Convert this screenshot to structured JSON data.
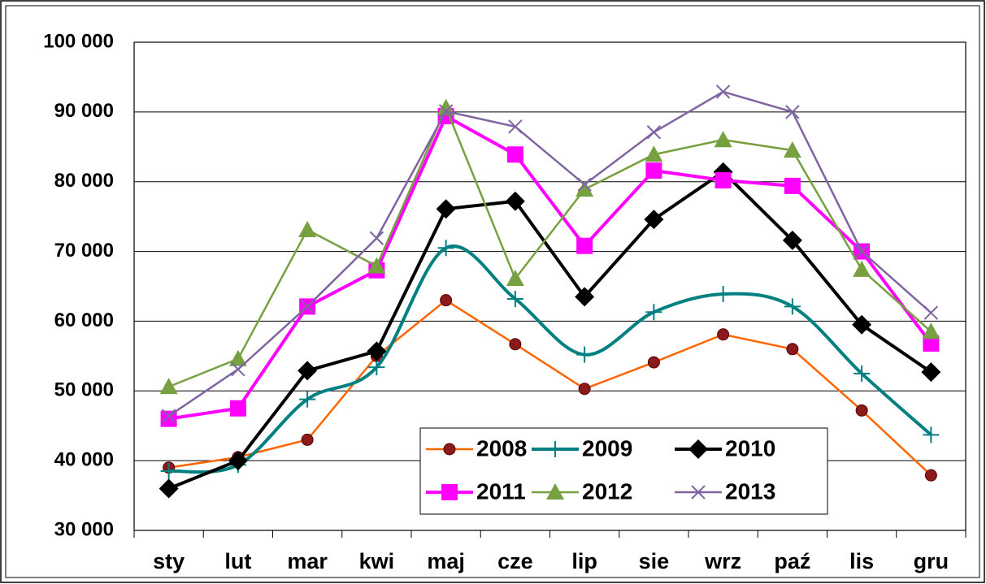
{
  "chart_data": {
    "type": "line",
    "categories": [
      "sty",
      "lut",
      "mar",
      "kwi",
      "maj",
      "cze",
      "lip",
      "sie",
      "wrz",
      "paź",
      "lis",
      "gru"
    ],
    "series": [
      {
        "name": "2008",
        "color": "#ff6600",
        "marker": "circle",
        "values": [
          39000,
          40500,
          43000,
          55000,
          63000,
          56700,
          50300,
          54100,
          58100,
          56000,
          47200,
          37900
        ]
      },
      {
        "name": "2009",
        "color": "#008080",
        "marker": "plus",
        "smooth": true,
        "values": [
          38500,
          39400,
          48800,
          53400,
          70500,
          63200,
          55200,
          61300,
          63900,
          62100,
          52500,
          43700
        ]
      },
      {
        "name": "2010",
        "color": "#000000",
        "marker": "diamond",
        "values": [
          36000,
          40000,
          52900,
          55700,
          76100,
          77200,
          63500,
          74600,
          81400,
          71600,
          59500,
          52700
        ]
      },
      {
        "name": "2011",
        "color": "#ff00ff",
        "marker": "square",
        "values": [
          46000,
          47500,
          62100,
          67300,
          89400,
          83900,
          70800,
          81600,
          80200,
          79400,
          70000,
          56800
        ]
      },
      {
        "name": "2012",
        "color": "#77a040",
        "marker": "triangle",
        "values": [
          50600,
          54600,
          73100,
          67900,
          90600,
          66100,
          78900,
          83900,
          86000,
          84500,
          67400,
          58500
        ]
      },
      {
        "name": "2013",
        "color": "#8064a2",
        "marker": "x",
        "values": [
          46400,
          53100,
          62100,
          71900,
          90100,
          87900,
          79600,
          87100,
          92900,
          90000,
          70000,
          61200
        ]
      }
    ],
    "ylim": [
      30000,
      100000
    ],
    "yticks": [
      {
        "value": 30000,
        "label": "30 000"
      },
      {
        "value": 40000,
        "label": "40 000"
      },
      {
        "value": 50000,
        "label": "50 000"
      },
      {
        "value": 60000,
        "label": "60 000"
      },
      {
        "value": 70000,
        "label": "70 000"
      },
      {
        "value": 80000,
        "label": "80 000"
      },
      {
        "value": 90000,
        "label": "90 000"
      },
      {
        "value": 100000,
        "label": "100 000"
      }
    ],
    "grid": true,
    "legend": "lower right"
  }
}
